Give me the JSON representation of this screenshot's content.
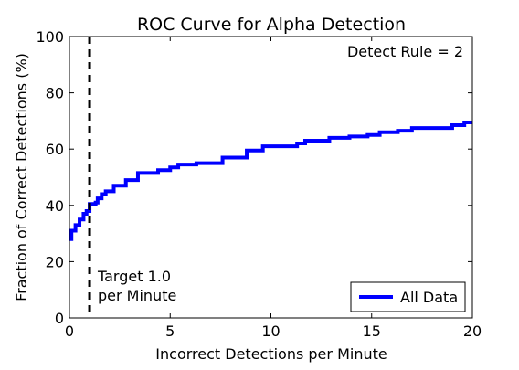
{
  "chart_data": {
    "type": "line",
    "title": "ROC Curve for Alpha Detection",
    "xlabel": "Incorrect Detections per Minute",
    "ylabel": "Fraction of Correct Detections (%)",
    "xlim": [
      0,
      20
    ],
    "ylim": [
      0,
      100
    ],
    "xticks": [
      0,
      5,
      10,
      15,
      20
    ],
    "yticks": [
      0,
      20,
      40,
      60,
      80,
      100
    ],
    "grid": false,
    "legend_position": "lower-right",
    "series": [
      {
        "name": "All Data",
        "color": "#0000ff",
        "style": "step",
        "x": [
          0,
          0.1,
          0.3,
          0.5,
          0.7,
          0.85,
          1.0,
          1.3,
          1.4,
          1.6,
          1.8,
          2.2,
          2.8,
          3.4,
          4.4,
          5.0,
          5.4,
          6.3,
          7.6,
          8.8,
          9.6,
          11.3,
          11.7,
          12.9,
          13.9,
          14.8,
          15.4,
          16.3,
          17.0,
          19.0,
          19.6,
          20.0
        ],
        "y": [
          28,
          31,
          33,
          35,
          37,
          38,
          40.5,
          41,
          42.5,
          44,
          45,
          47,
          49,
          51.5,
          52.5,
          53.5,
          54.5,
          55,
          57,
          59.5,
          61,
          62,
          63,
          64,
          64.5,
          65,
          66,
          66.5,
          67.5,
          68.5,
          69.5,
          69.5
        ]
      }
    ],
    "annotations": [
      {
        "type": "vline",
        "x": 1.0,
        "style": "dashed",
        "color": "#000000",
        "label_lines": [
          "Target 1.0",
          "per Minute"
        ]
      },
      {
        "type": "text",
        "text": "Detect Rule = 2",
        "position": "top-right"
      }
    ]
  }
}
